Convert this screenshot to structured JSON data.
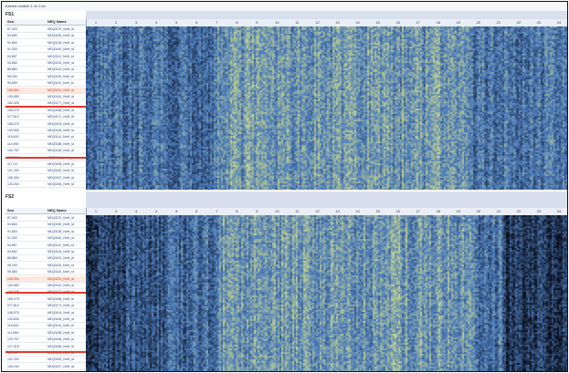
{
  "document": {
    "title": "trained module 1 vs 1.txt",
    "column_numbers": [
      "1",
      "2",
      "3",
      "4",
      "5",
      "6",
      "7",
      "8",
      "9",
      "10",
      "11",
      "12",
      "13",
      "14",
      "15",
      "16",
      "17",
      "18",
      "19",
      "20",
      "21",
      "22",
      "23",
      "24"
    ]
  },
  "panels": [
    {
      "label": "FS1",
      "col_headers": {
        "id": "Scn",
        "name": "NEQ Name"
      },
      "ids": [
        "87.403",
        "94.660",
        "91.800",
        "91.300",
        "94.857",
        "94.662",
        "88.860",
        "98.230",
        "95.650",
        "108.964",
        "133.950",
        "152.025",
        "106.279",
        "077.813",
        "108.075",
        "133.830",
        "115.600",
        "114.950",
        "120.767",
        "127.518",
        "117.117",
        "101.200",
        "105.200",
        "120.200"
      ],
      "names": [
        "NEQ0270_NnH_st",
        "NEQ0150_NnH_st",
        "NEQ0128_NnH_st",
        "NEQ0140_NnH_st",
        "NEQ0112_NnH_st",
        "NEQ0124_NnH_st",
        "NEQ0102_NnH_st",
        "NEQ0115_NnH_st",
        "NEQ0110_NnH_st",
        "NEQ0231_NnH_st",
        "NEQ0142_NnH_st",
        "NEQ0177_NnH_st",
        "NEQ0168_NnH_st",
        "NEQ0171_NnH_st",
        "NEQ0104_NnH_st",
        "NEQ0106_NnH_st",
        "NEQ0114_NnH_st",
        "NEQ0158_NnH_st",
        "NEQ0148_NnH_st",
        "NEQ0166_NnH_st",
        "NEQ0108_NnH_st",
        "NEQ0152_NnH_st",
        "NEQ0157_NnH_st",
        "NEQ0153_NnH_st"
      ]
    },
    {
      "label": "FS2",
      "col_headers": {
        "id": "Scn",
        "name": "NEQ Name"
      },
      "ids": [
        "87.403",
        "94.660",
        "91.800",
        "91.300",
        "94.857",
        "94.662",
        "88.860",
        "98.230",
        "95.650",
        "108.964",
        "133.950",
        "152.025",
        "106.279",
        "077.813",
        "108.075",
        "133.830",
        "115.600",
        "114.950",
        "120.767",
        "127.518",
        "117.117",
        "101.200",
        "105.200",
        "120.200",
        "108.330",
        "110.400"
      ],
      "names": [
        "NEQ0270_NnH_st",
        "NEQ0150_NnH_st",
        "NEQ0128_NnH_st",
        "NEQ0140_NnH_st",
        "NEQ0112_NnH_st",
        "NEQ0124_NnH_st",
        "NEQ0102_NnH_st",
        "NEQ0115_NnH_st",
        "NEQ0110_NnH_st",
        "NEQ0231_NnH_st",
        "NEQ0142_NnH_st",
        "NEQ0177_NnH_st",
        "NEQ0168_NnH_st",
        "NEQ0171_NnH_st",
        "NEQ0104_NnH_st",
        "NEQ0106_NnH_st",
        "NEQ0114_NnH_st",
        "NEQ0158_NnH_st",
        "NEQ0148_NnH_st",
        "NEQ0166_NnH_st",
        "NEQ0108_NnH_st",
        "NEQ0152_NnH_st",
        "NEQ0157_NnH_st",
        "NEQ0153_NnH_st",
        "NEQ0160_NnH_st",
        "NEQ0161_NnH_st"
      ]
    }
  ],
  "colors": {
    "low": "#0b0f1c",
    "mid": "#4f7fc0",
    "high": "#eef07a",
    "highlight_row": "#e2382b",
    "header_band": "#d8e0ee"
  }
}
